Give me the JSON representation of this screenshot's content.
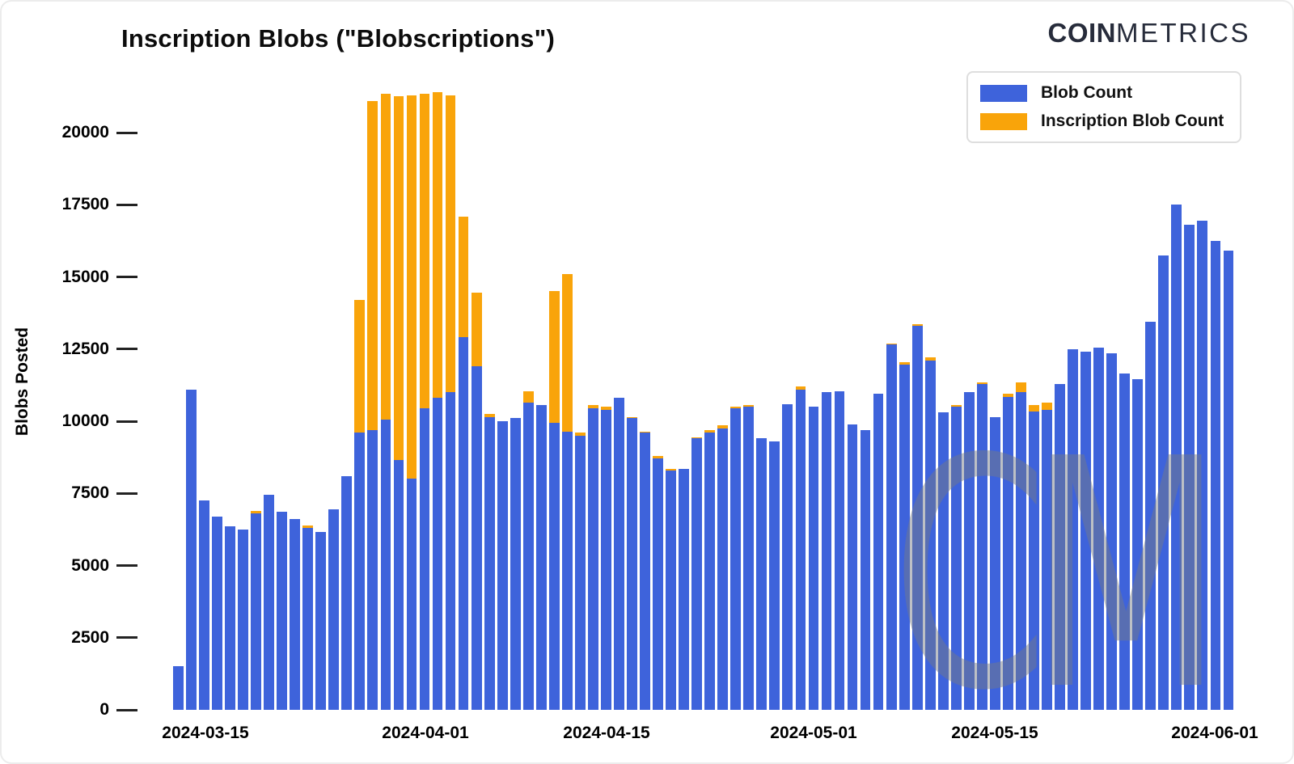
{
  "title": "Inscription Blobs (\"Blobscriptions\")",
  "logo": {
    "bold": "COIN",
    "light": "METRICS"
  },
  "watermark": "CM",
  "legend": [
    {
      "label": "Blob Count",
      "color": "#3e63db"
    },
    {
      "label": "Inscription Blob Count",
      "color": "#f9a40a"
    }
  ],
  "chart_data": {
    "type": "bar",
    "stacked": true,
    "title": "Inscription Blobs (\"Blobscriptions\")",
    "xlabel": "",
    "ylabel": "Blobs Posted",
    "ylim": [
      0,
      20000
    ],
    "grid": false,
    "legend_position": "top-right",
    "yticks": [
      0,
      2500,
      5000,
      7500,
      10000,
      12500,
      15000,
      17500,
      20000
    ],
    "xticks": [
      "2024-03-15",
      "2024-04-01",
      "2024-04-15",
      "2024-05-01",
      "2024-05-15",
      "2024-06-01"
    ],
    "categories": [
      "2024-03-13",
      "2024-03-14",
      "2024-03-15",
      "2024-03-16",
      "2024-03-17",
      "2024-03-18",
      "2024-03-19",
      "2024-03-20",
      "2024-03-21",
      "2024-03-22",
      "2024-03-23",
      "2024-03-24",
      "2024-03-25",
      "2024-03-26",
      "2024-03-27",
      "2024-03-28",
      "2024-03-29",
      "2024-03-30",
      "2024-03-31",
      "2024-04-01",
      "2024-04-02",
      "2024-04-03",
      "2024-04-04",
      "2024-04-05",
      "2024-04-06",
      "2024-04-07",
      "2024-04-08",
      "2024-04-09",
      "2024-04-10",
      "2024-04-11",
      "2024-04-12",
      "2024-04-13",
      "2024-04-14",
      "2024-04-15",
      "2024-04-16",
      "2024-04-17",
      "2024-04-18",
      "2024-04-19",
      "2024-04-20",
      "2024-04-21",
      "2024-04-22",
      "2024-04-23",
      "2024-04-24",
      "2024-04-25",
      "2024-04-26",
      "2024-04-27",
      "2024-04-28",
      "2024-04-29",
      "2024-04-30",
      "2024-05-01",
      "2024-05-02",
      "2024-05-03",
      "2024-05-04",
      "2024-05-05",
      "2024-05-06",
      "2024-05-07",
      "2024-05-08",
      "2024-05-09",
      "2024-05-10",
      "2024-05-11",
      "2024-05-12",
      "2024-05-13",
      "2024-05-14",
      "2024-05-15",
      "2024-05-16",
      "2024-05-17",
      "2024-05-18",
      "2024-05-19",
      "2024-05-20",
      "2024-05-21",
      "2024-05-22",
      "2024-05-23",
      "2024-05-24",
      "2024-05-25",
      "2024-05-26",
      "2024-05-27",
      "2024-05-28",
      "2024-05-29",
      "2024-05-30",
      "2024-05-31",
      "2024-06-01",
      "2024-06-02"
    ],
    "series": [
      {
        "name": "Blob Count",
        "color": "#3e63db",
        "values": [
          1500,
          11100,
          7250,
          6700,
          6350,
          6250,
          6800,
          7450,
          6850,
          6600,
          6300,
          6150,
          6950,
          8100,
          9600,
          9700,
          10050,
          8650,
          8000,
          10450,
          10800,
          11000,
          12900,
          11900,
          10150,
          10000,
          10100,
          10650,
          10550,
          9950,
          9650,
          9500,
          10450,
          10400,
          10800,
          10100,
          9600,
          8700,
          8300,
          8350,
          9400,
          9600,
          9750,
          10450,
          10500,
          9400,
          9300,
          10600,
          11100,
          10500,
          11000,
          11050,
          9900,
          9700,
          10950,
          12650,
          11950,
          13300,
          12100,
          10300,
          10500,
          11000,
          11300,
          10150,
          10850,
          11000,
          10350,
          10400,
          11300,
          12500,
          12400,
          12550,
          12350,
          11650,
          11450,
          13450,
          15750,
          17500,
          16800,
          16950,
          16250,
          15900
        ]
      },
      {
        "name": "Inscription Blob Count",
        "color": "#f9a40a",
        "values": [
          0,
          0,
          0,
          0,
          0,
          0,
          100,
          0,
          0,
          0,
          100,
          0,
          0,
          0,
          4600,
          11400,
          11300,
          12600,
          13300,
          10900,
          10600,
          10300,
          4200,
          2550,
          100,
          0,
          0,
          400,
          0,
          4550,
          5450,
          100,
          100,
          100,
          0,
          50,
          50,
          100,
          50,
          0,
          50,
          100,
          100,
          50,
          50,
          0,
          0,
          0,
          100,
          0,
          0,
          0,
          0,
          0,
          0,
          50,
          100,
          50,
          100,
          0,
          50,
          0,
          50,
          0,
          100,
          350,
          200,
          250,
          0,
          0,
          0,
          0,
          0,
          0,
          0,
          0,
          0,
          0,
          0,
          0,
          0,
          0
        ]
      }
    ]
  }
}
